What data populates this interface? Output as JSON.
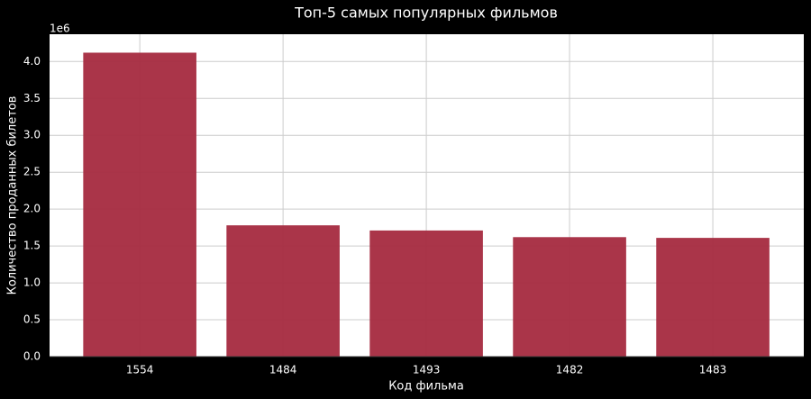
{
  "chart_data": {
    "type": "bar",
    "title": "Топ-5 самых популярных фильмов",
    "x_label": "Код фильма",
    "y_label": "Количество проданных билетов",
    "y_offset_label": "1e6",
    "categories": [
      "1554",
      "1484",
      "1493",
      "1482",
      "1483"
    ],
    "values": [
      4.12,
      1.78,
      1.71,
      1.62,
      1.61
    ],
    "color": "#a52a3f",
    "ylim": [
      0,
      4.37
    ],
    "yticks": [
      {
        "value": 0,
        "label": "0.0"
      },
      {
        "value": 0.5,
        "label": "0.5"
      },
      {
        "value": 1,
        "label": "1.0"
      },
      {
        "value": 1.5,
        "label": "1.5"
      },
      {
        "value": 2,
        "label": "2.0"
      },
      {
        "value": 2.5,
        "label": "2.5"
      },
      {
        "value": 3,
        "label": "3.0"
      },
      {
        "value": 3.5,
        "label": "3.5"
      },
      {
        "value": 4,
        "label": "4.0"
      }
    ],
    "grid": true
  }
}
